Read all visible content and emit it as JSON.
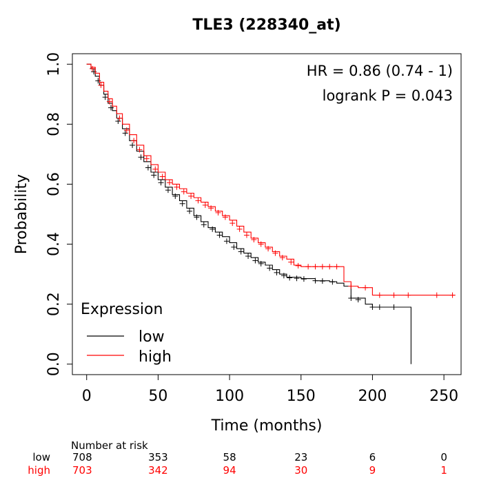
{
  "chart_data": {
    "type": "line",
    "title": "TLE3 (228340_at)",
    "xlabel": "Time (months)",
    "ylabel": "Probability",
    "xlim": [
      -10,
      262
    ],
    "ylim": [
      -0.035,
      1.035
    ],
    "xticks": [
      0,
      50,
      100,
      150,
      200,
      250
    ],
    "yticks": [
      0.0,
      0.2,
      0.4,
      0.6,
      0.8,
      1.0
    ],
    "ytick_labels": [
      "0.0",
      "0.2",
      "0.4",
      "0.6",
      "0.8",
      "1.0"
    ],
    "grid": false,
    "annotations": [
      "HR = 0.86 (0.74 - 1)",
      "logrank P = 0.043"
    ],
    "legend": {
      "title": "Expression",
      "position": "bottom-left"
    },
    "series": [
      {
        "name": "low",
        "color": "#000000",
        "points": [
          [
            0,
            1.0
          ],
          [
            3,
            0.985
          ],
          [
            6,
            0.96
          ],
          [
            9,
            0.93
          ],
          [
            12,
            0.9
          ],
          [
            15,
            0.87
          ],
          [
            18,
            0.845
          ],
          [
            21,
            0.82
          ],
          [
            25,
            0.785
          ],
          [
            30,
            0.745
          ],
          [
            35,
            0.71
          ],
          [
            40,
            0.675
          ],
          [
            45,
            0.64
          ],
          [
            50,
            0.615
          ],
          [
            55,
            0.59
          ],
          [
            60,
            0.565
          ],
          [
            65,
            0.545
          ],
          [
            70,
            0.52
          ],
          [
            75,
            0.495
          ],
          [
            80,
            0.475
          ],
          [
            85,
            0.455
          ],
          [
            90,
            0.44
          ],
          [
            95,
            0.425
          ],
          [
            100,
            0.405
          ],
          [
            105,
            0.385
          ],
          [
            110,
            0.37
          ],
          [
            115,
            0.355
          ],
          [
            120,
            0.34
          ],
          [
            125,
            0.33
          ],
          [
            130,
            0.315
          ],
          [
            135,
            0.3
          ],
          [
            140,
            0.29
          ],
          [
            150,
            0.285
          ],
          [
            160,
            0.278
          ],
          [
            170,
            0.275
          ],
          [
            175,
            0.27
          ],
          [
            180,
            0.26
          ],
          [
            185,
            0.22
          ],
          [
            195,
            0.2
          ],
          [
            200,
            0.19
          ],
          [
            227,
            0.19
          ],
          [
            227,
            0.0
          ]
        ],
        "censors": [
          [
            5,
            0.975
          ],
          [
            8,
            0.945
          ],
          [
            13,
            0.89
          ],
          [
            17,
            0.855
          ],
          [
            22,
            0.81
          ],
          [
            27,
            0.77
          ],
          [
            32,
            0.73
          ],
          [
            38,
            0.69
          ],
          [
            43,
            0.655
          ],
          [
            47,
            0.63
          ],
          [
            52,
            0.605
          ],
          [
            57,
            0.58
          ],
          [
            62,
            0.56
          ],
          [
            67,
            0.535
          ],
          [
            72,
            0.51
          ],
          [
            77,
            0.49
          ],
          [
            82,
            0.465
          ],
          [
            88,
            0.45
          ],
          [
            93,
            0.43
          ],
          [
            98,
            0.41
          ],
          [
            103,
            0.39
          ],
          [
            108,
            0.375
          ],
          [
            113,
            0.36
          ],
          [
            118,
            0.345
          ],
          [
            122,
            0.335
          ],
          [
            128,
            0.32
          ],
          [
            133,
            0.305
          ],
          [
            138,
            0.295
          ],
          [
            142,
            0.288
          ],
          [
            147,
            0.286
          ],
          [
            152,
            0.284
          ],
          [
            160,
            0.278
          ],
          [
            165,
            0.277
          ],
          [
            172,
            0.274
          ],
          [
            185,
            0.22
          ],
          [
            190,
            0.215
          ],
          [
            200,
            0.19
          ],
          [
            205,
            0.19
          ],
          [
            215,
            0.19
          ]
        ]
      },
      {
        "name": "high",
        "color": "#ff0000",
        "points": [
          [
            0,
            1.0
          ],
          [
            3,
            0.99
          ],
          [
            6,
            0.97
          ],
          [
            9,
            0.94
          ],
          [
            12,
            0.91
          ],
          [
            15,
            0.885
          ],
          [
            18,
            0.86
          ],
          [
            21,
            0.835
          ],
          [
            25,
            0.8
          ],
          [
            30,
            0.765
          ],
          [
            35,
            0.73
          ],
          [
            40,
            0.695
          ],
          [
            45,
            0.665
          ],
          [
            50,
            0.64
          ],
          [
            55,
            0.615
          ],
          [
            60,
            0.6
          ],
          [
            65,
            0.585
          ],
          [
            70,
            0.57
          ],
          [
            75,
            0.555
          ],
          [
            80,
            0.54
          ],
          [
            85,
            0.525
          ],
          [
            90,
            0.51
          ],
          [
            95,
            0.495
          ],
          [
            100,
            0.48
          ],
          [
            105,
            0.46
          ],
          [
            110,
            0.44
          ],
          [
            115,
            0.42
          ],
          [
            120,
            0.405
          ],
          [
            125,
            0.39
          ],
          [
            130,
            0.375
          ],
          [
            135,
            0.36
          ],
          [
            140,
            0.35
          ],
          [
            145,
            0.33
          ],
          [
            150,
            0.325
          ],
          [
            160,
            0.325
          ],
          [
            170,
            0.325
          ],
          [
            175,
            0.325
          ],
          [
            180,
            0.275
          ],
          [
            185,
            0.26
          ],
          [
            190,
            0.255
          ],
          [
            195,
            0.255
          ],
          [
            200,
            0.23
          ],
          [
            258,
            0.23
          ]
        ],
        "censors": [
          [
            4,
            0.985
          ],
          [
            10,
            0.93
          ],
          [
            16,
            0.875
          ],
          [
            23,
            0.82
          ],
          [
            28,
            0.78
          ],
          [
            33,
            0.745
          ],
          [
            37,
            0.715
          ],
          [
            42,
            0.685
          ],
          [
            48,
            0.65
          ],
          [
            53,
            0.625
          ],
          [
            58,
            0.605
          ],
          [
            63,
            0.59
          ],
          [
            68,
            0.575
          ],
          [
            73,
            0.56
          ],
          [
            78,
            0.545
          ],
          [
            83,
            0.53
          ],
          [
            87,
            0.52
          ],
          [
            92,
            0.505
          ],
          [
            97,
            0.49
          ],
          [
            102,
            0.47
          ],
          [
            107,
            0.45
          ],
          [
            112,
            0.43
          ],
          [
            117,
            0.415
          ],
          [
            122,
            0.4
          ],
          [
            127,
            0.385
          ],
          [
            132,
            0.37
          ],
          [
            137,
            0.355
          ],
          [
            143,
            0.34
          ],
          [
            148,
            0.328
          ],
          [
            155,
            0.325
          ],
          [
            160,
            0.325
          ],
          [
            165,
            0.325
          ],
          [
            170,
            0.325
          ],
          [
            175,
            0.325
          ],
          [
            185,
            0.26
          ],
          [
            195,
            0.255
          ],
          [
            205,
            0.23
          ],
          [
            215,
            0.23
          ],
          [
            225,
            0.23
          ],
          [
            245,
            0.23
          ],
          [
            256,
            0.23
          ]
        ]
      }
    ],
    "risk_table": {
      "title": "Number at risk",
      "times": [
        0,
        50,
        100,
        150,
        200,
        250
      ],
      "rows": [
        {
          "label": "low",
          "color": "#000000",
          "values": [
            "708",
            "353",
            "58",
            "23",
            "6",
            "0"
          ]
        },
        {
          "label": "high",
          "color": "#ff0000",
          "values": [
            "703",
            "342",
            "94",
            "30",
            "9",
            "1"
          ]
        }
      ]
    }
  }
}
